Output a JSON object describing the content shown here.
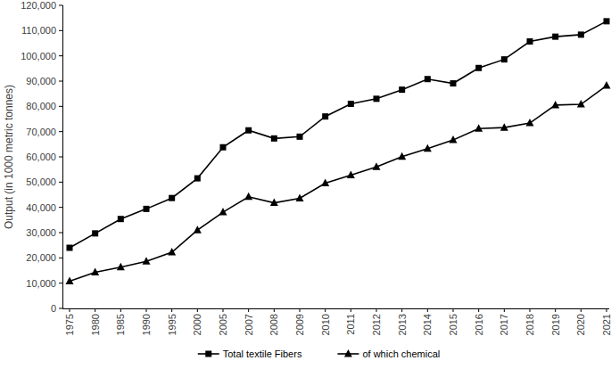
{
  "chart_data": {
    "type": "line",
    "y_label": "Output (in 1000 metric tonnes)",
    "categories": [
      "1975",
      "1980",
      "1985",
      "1990",
      "1995",
      "2000",
      "2005",
      "2007",
      "2008",
      "2009",
      "2010",
      "2011",
      "2012",
      "2013",
      "2014",
      "2015",
      "2016",
      "2017",
      "2018",
      "2019",
      "2020",
      "2021"
    ],
    "series": [
      {
        "name": "Total textile Fibers",
        "color": "#000000",
        "marker": "square",
        "line_style": "solid",
        "values": [
          24000,
          29700,
          35400,
          39400,
          43700,
          51500,
          63800,
          70500,
          67300,
          68000,
          76000,
          81000,
          83000,
          86600,
          90800,
          89100,
          95200,
          98600,
          105700,
          107600,
          108400,
          113700
        ]
      },
      {
        "name": "of which chemical",
        "color": "#000000",
        "marker": "triangle",
        "line_style": "solid",
        "values": [
          10800,
          14300,
          16300,
          18600,
          22200,
          31000,
          38100,
          44200,
          41800,
          43600,
          49600,
          52800,
          56000,
          60100,
          63300,
          66700,
          71200,
          71600,
          73400,
          80500,
          80800,
          88200
        ]
      }
    ],
    "ylim": [
      0,
      120000
    ],
    "yticks": [
      0,
      {
        "value": 10000,
        "label": "10,000"
      },
      {
        "value": 20000,
        "label": "20,000"
      },
      {
        "value": 30000,
        "label": "30,000"
      },
      {
        "value": 40000,
        "label": "40,000"
      },
      {
        "value": 50000,
        "label": "50,000"
      },
      {
        "value": 60000,
        "label": "60,000"
      },
      {
        "value": 70000,
        "label": "70,000"
      },
      {
        "value": 80000,
        "label": "80,000"
      },
      {
        "value": 90000,
        "label": "90,000"
      },
      {
        "value": 100000,
        "label": "100,000"
      },
      {
        "value": 110000,
        "label": "110,000"
      },
      {
        "value": 120000,
        "label": "120,000"
      }
    ],
    "grid": false,
    "legend": "bottom"
  }
}
